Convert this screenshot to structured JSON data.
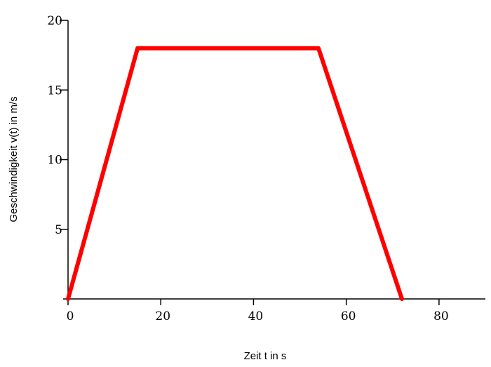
{
  "chart_data": {
    "type": "line",
    "title": "",
    "xlabel": "Zeit t in s",
    "ylabel": "Geschwindigkeit v(t) in m/s",
    "xlim": [
      0,
      90
    ],
    "ylim": [
      0,
      20
    ],
    "xticks": [
      0,
      20,
      40,
      60,
      80
    ],
    "yticks": [
      5,
      10,
      15,
      20
    ],
    "grid": false,
    "series": [
      {
        "color": "#ff0000",
        "x": [
          0,
          15,
          54,
          72
        ],
        "y": [
          0,
          18,
          18,
          0
        ]
      }
    ]
  }
}
